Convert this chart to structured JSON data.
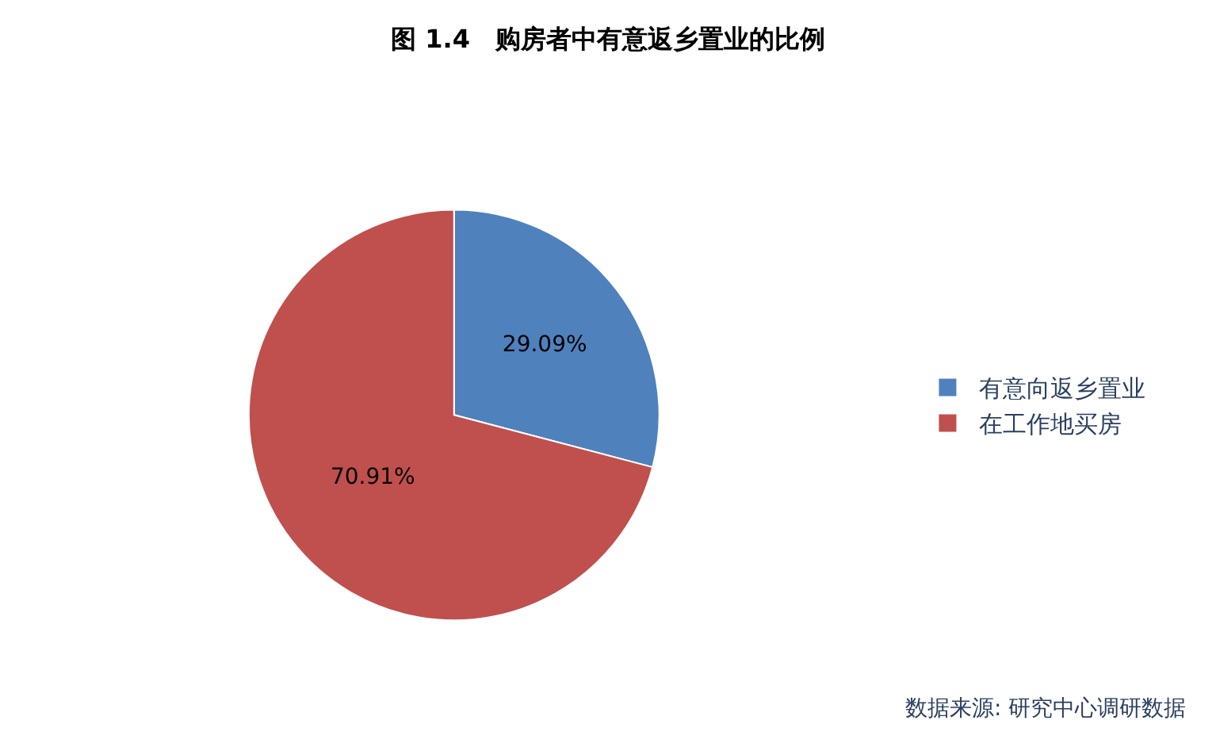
{
  "chart_data": {
    "type": "pie",
    "title": "图 1.4　购房者中有意返乡置业的比例",
    "categories": [
      "有意向返乡置业",
      "在工作地买房"
    ],
    "values": [
      29.09,
      70.91
    ],
    "value_labels": [
      "29.09%",
      "70.91%"
    ],
    "colors": [
      "#4f81bd",
      "#c0504d"
    ],
    "legend": "right",
    "annotations": [
      "数据来源: 研究中心调研数据"
    ]
  }
}
